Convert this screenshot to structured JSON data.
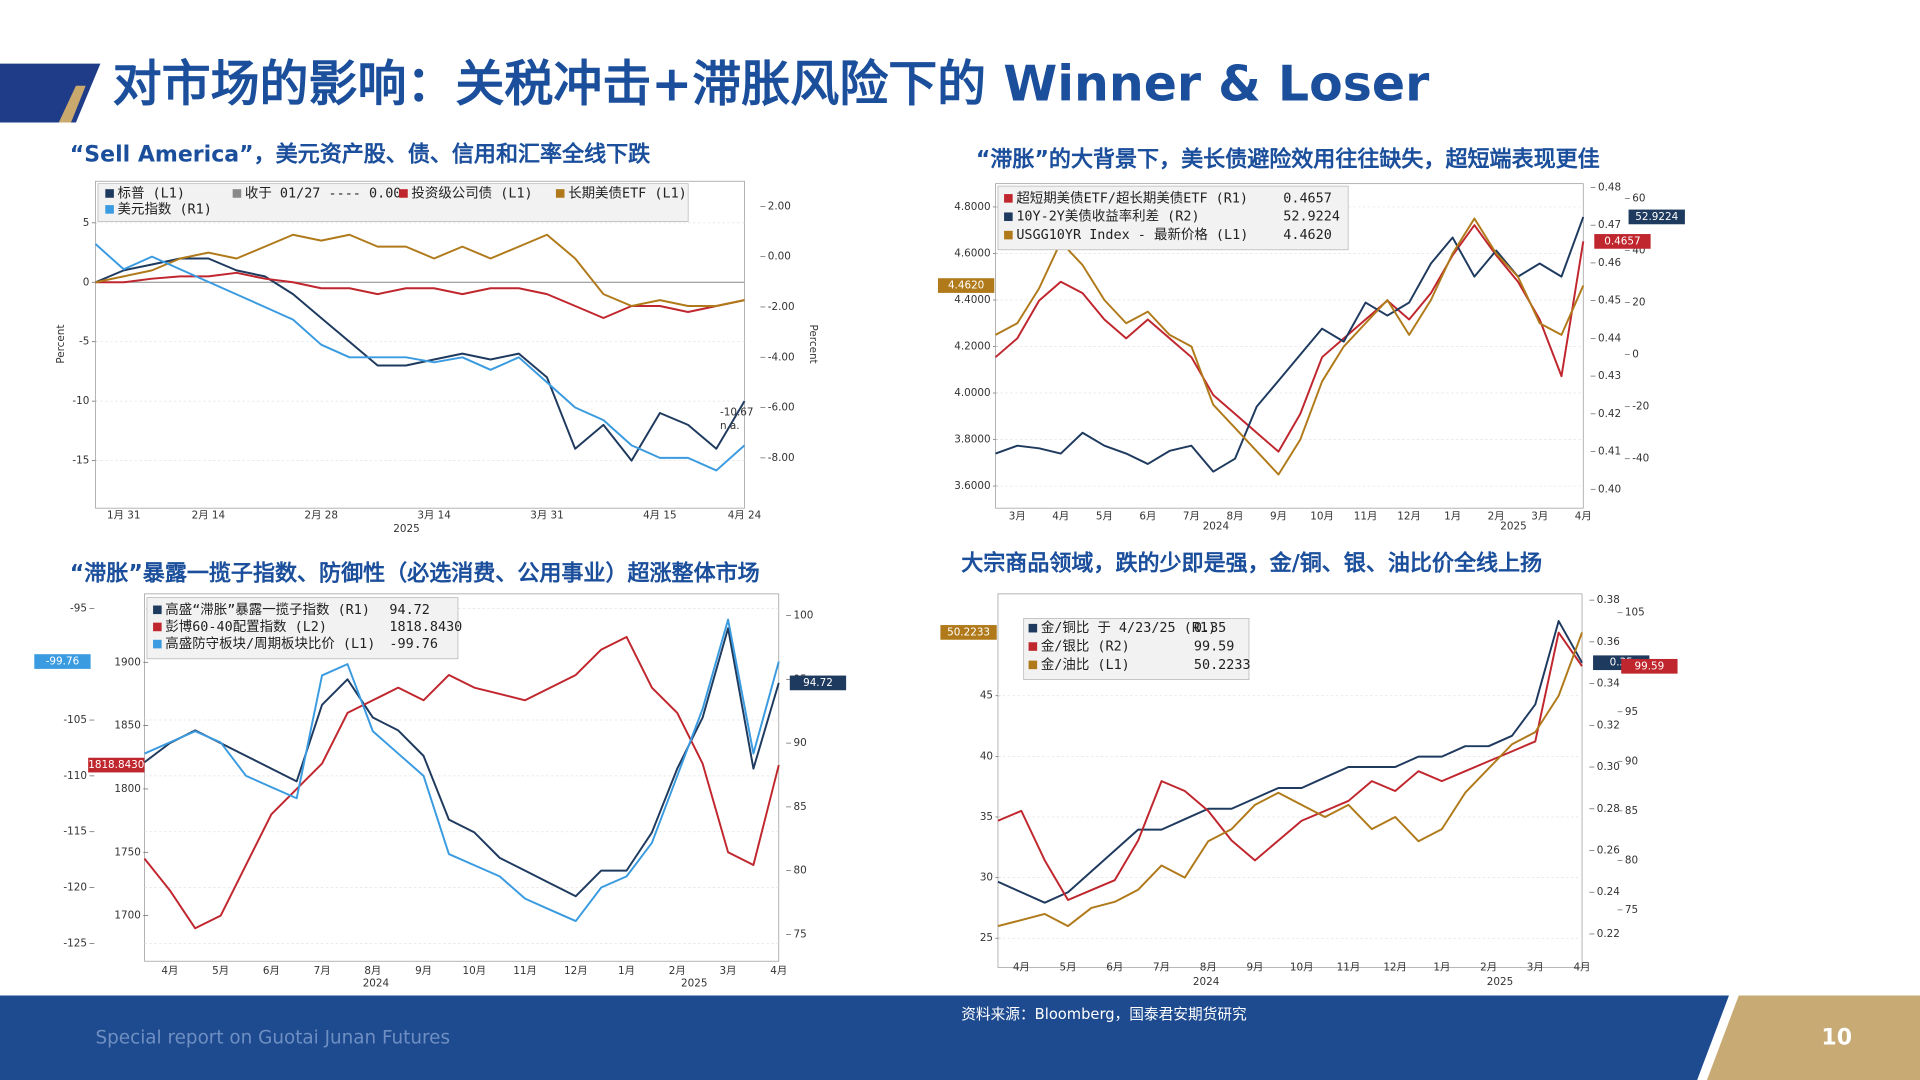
{
  "header": {
    "title": "对市场的影响：关税冲击+滞胀风险下的 Winner & Loser",
    "footer": "Special report on Guotai Junan Futures",
    "page_number": "10",
    "source": "资料来源：Bloomberg，国泰君安期货研究"
  },
  "chart_data": [
    {
      "type": "line",
      "title": "“Sell America”，美元资产股、债、信用和汇率全线下跌",
      "categories": [
        null,
        "1月 31",
        null,
        null,
        "2月 14",
        null,
        null,
        null,
        "2月 28",
        null,
        null,
        null,
        "3月 14",
        null,
        null,
        null,
        "3月 31",
        null,
        null,
        null,
        "4月 15",
        null,
        null,
        "4月 24"
      ],
      "year_labels": [
        "2025"
      ],
      "ylabel": "Percent",
      "y2label": "Percent",
      "ylim": [
        -19,
        8.5
      ],
      "yticks": [
        5,
        0,
        -5,
        -10,
        -15
      ],
      "y2lim": [
        -10,
        3
      ],
      "y2ticks": [
        {
          "value": 2,
          "label": "2.00"
        },
        {
          "value": 0,
          "label": "0.00"
        },
        {
          "value": -2,
          "label": "-2.00"
        },
        {
          "value": -4,
          "label": "-4.00"
        },
        {
          "value": -6,
          "label": "-6.00"
        },
        {
          "value": -8,
          "label": "-8.00"
        }
      ],
      "grid": true,
      "reference_line": {
        "label": "收于 01/27 ---- 0.00",
        "value": 0,
        "color": "#8a8a8a"
      },
      "series": [
        {
          "name": "标普 (L1)",
          "color": "#1f3a5f",
          "axis": "y",
          "values": [
            0,
            1,
            1.5,
            2,
            2,
            1,
            0.5,
            -1,
            -3,
            -5,
            -7,
            -7,
            -6.5,
            -6,
            -6.5,
            -6,
            -8,
            -14,
            -12,
            -15,
            -11,
            -12,
            -14,
            -10
          ]
        },
        {
          "name": "投资级公司债 (L1)",
          "color": "#c0262d",
          "axis": "y",
          "values": [
            0,
            0,
            0.3,
            0.5,
            0.5,
            0.8,
            0.3,
            0,
            -0.5,
            -0.5,
            -1,
            -0.5,
            -0.5,
            -1,
            -0.5,
            -0.5,
            -1,
            -2,
            -3,
            -2,
            -2,
            -2.5,
            -2,
            -1.5
          ]
        },
        {
          "name": "长期美债ETF (L1)",
          "color": "#b07a1a",
          "axis": "y",
          "values": [
            0,
            0.5,
            1,
            2,
            2.5,
            2,
            3,
            4,
            3.5,
            4,
            3,
            3,
            2,
            3,
            2,
            3,
            4,
            2,
            -1,
            -2,
            -1.5,
            -2,
            -2,
            -1.5
          ]
        },
        {
          "name": "美元指数 (R1)",
          "color": "#3a9be0",
          "axis": "y2",
          "values": [
            0.5,
            -0.5,
            0,
            -0.5,
            -1,
            -1.5,
            -2,
            -2.5,
            -3.5,
            -4,
            -4,
            -4,
            -4.2,
            -4,
            -4.5,
            -4,
            -5,
            -6,
            -6.5,
            -7.5,
            -8,
            -8,
            -8.5,
            -7.5
          ]
        }
      ],
      "annotations": [
        "-10.67",
        "n.a."
      ]
    },
    {
      "type": "line",
      "title": "“滞胀”的大背景下，美长债避险效用往往缺失，超短端表现更佳",
      "categories": [
        null,
        "3月",
        null,
        "4月",
        null,
        "5月",
        null,
        "6月",
        null,
        "7月",
        null,
        "8月",
        null,
        "9月",
        null,
        "10月",
        null,
        "11月",
        null,
        "12月",
        null,
        "1月",
        null,
        "2月",
        null,
        "3月",
        null,
        "4月"
      ],
      "year_labels": [
        "2024",
        "2025"
      ],
      "ylim": [
        3.505,
        4.9
      ],
      "yticks": [
        {
          "value": 4.8,
          "label": "4.8000"
        },
        {
          "value": 4.6,
          "label": "4.6000"
        },
        {
          "value": 4.4,
          "label": "4.4000"
        },
        {
          "value": 4.2,
          "label": "4.2000"
        },
        {
          "value": 4,
          "label": "4.0000"
        },
        {
          "value": 3.8,
          "label": "3.8000"
        },
        {
          "value": 3.6,
          "label": "3.6000"
        }
      ],
      "y2lim": [
        0.395,
        0.481
      ],
      "y2ticks": [
        0.48,
        0.47,
        0.46,
        0.45,
        0.44,
        0.43,
        0.42,
        0.41,
        {
          "value": 0.4,
          "label": "0.40"
        }
      ],
      "y3lim": [
        -59,
        65.7
      ],
      "y3ticks": [
        60,
        40,
        20,
        0,
        -20,
        -40
      ],
      "grid": true,
      "series": [
        {
          "name": "超短期美债ETF/超长期美债ETF (R1)",
          "last_label": "0.4657",
          "color": "#c0262d",
          "axis": "y2",
          "values": [
            0.435,
            0.44,
            0.45,
            0.455,
            0.452,
            0.445,
            0.44,
            0.445,
            0.44,
            0.435,
            0.425,
            0.42,
            0.415,
            0.41,
            0.42,
            0.435,
            0.44,
            0.445,
            0.45,
            0.445,
            0.452,
            0.462,
            0.47,
            0.462,
            0.455,
            0.445,
            0.43,
            0.4657
          ]
        },
        {
          "name": "10Y-2Y美债收益率利差 (R2)",
          "last_label": "52.9224",
          "color": "#1f3a5f",
          "axis": "y3",
          "values": [
            -38,
            -35,
            -36,
            -38,
            -30,
            -35,
            -38,
            -42,
            -37,
            -35,
            -45,
            -40,
            -20,
            -10,
            0,
            10,
            5,
            20,
            15,
            20,
            35,
            45,
            30,
            40,
            30,
            35,
            30,
            52.9224
          ]
        },
        {
          "name": "USGG10YR Index - 最新价格 (L1)",
          "last_label": "4.4620",
          "color": "#b07a1a",
          "axis": "y",
          "values": [
            4.25,
            4.3,
            4.45,
            4.65,
            4.55,
            4.4,
            4.3,
            4.35,
            4.25,
            4.2,
            3.95,
            3.85,
            3.75,
            3.65,
            3.8,
            4.05,
            4.2,
            4.3,
            4.4,
            4.25,
            4.4,
            4.6,
            4.75,
            4.6,
            4.5,
            4.3,
            4.25,
            4.462
          ]
        }
      ]
    },
    {
      "type": "line",
      "title": "“滞胀”暴露一揽子指数、防御性（必选消费、公用事业）超涨整体市场",
      "categories": [
        null,
        "4月",
        null,
        "5月",
        null,
        "6月",
        null,
        "7月",
        null,
        "8月",
        null,
        "9月",
        null,
        "10月",
        null,
        "11月",
        null,
        "12月",
        null,
        "1月",
        null,
        "2月",
        null,
        "3月",
        null,
        "4月"
      ],
      "year_labels": [
        "2024",
        "2025"
      ],
      "ylim": [
        -126.6,
        -93.7
      ],
      "yticks": [
        -95,
        -105,
        -110,
        -115,
        -120,
        -125
      ],
      "y2lim": [
        72.9,
        101.7
      ],
      "y2ticks": [
        100,
        95,
        90,
        85,
        80,
        75
      ],
      "y3lim": [
        1664,
        1954
      ],
      "y3ticks": [
        1900,
        1850,
        1800,
        1750,
        1700
      ],
      "grid": true,
      "series": [
        {
          "name": "高盛“滞胀”暴露一揽子指数 (R1)",
          "last_label": "94.72",
          "color": "#1f3a5f",
          "axis": "y2",
          "values": [
            88.5,
            90,
            91,
            90,
            89,
            88,
            87,
            93,
            95,
            92,
            91,
            89,
            84,
            83,
            81,
            80,
            79,
            78,
            80,
            80,
            83,
            88,
            92,
            99,
            88,
            94.72
          ]
        },
        {
          "name": "彭博60-40配置指数 (L2)",
          "last_label": "1818.8430",
          "color": "#c0262d",
          "axis": "y3",
          "values": [
            1745,
            1720,
            1690,
            1700,
            1740,
            1780,
            1800,
            1820,
            1860,
            1870,
            1880,
            1870,
            1890,
            1880,
            1875,
            1870,
            1880,
            1890,
            1910,
            1920,
            1880,
            1860,
            1820,
            1750,
            1740,
            1818.843
          ]
        },
        {
          "name": "高盛防守板块/周期板块比价 (L1)",
          "last_label": "-99.76",
          "color": "#3a9be0",
          "axis": "y",
          "values": [
            -108,
            -107,
            -106,
            -107,
            -110,
            -111,
            -112,
            -101,
            -100,
            -106,
            -108,
            -110,
            -117,
            -118,
            -119,
            -121,
            -122,
            -123,
            -120,
            -119,
            -116,
            -110,
            -104,
            -96,
            -108,
            -99.76
          ]
        }
      ]
    },
    {
      "type": "line",
      "title": "大宗商品领域，跌的少即是强，金/铜、银、油比价全线上扬",
      "categories": [
        null,
        "4月",
        null,
        "5月",
        null,
        "6月",
        null,
        "7月",
        null,
        "8月",
        null,
        "9月",
        null,
        "10月",
        null,
        "11月",
        null,
        "12月",
        null,
        "1月",
        null,
        "2月",
        null,
        "3月",
        null,
        "4月"
      ],
      "year_labels": [
        "2024",
        "2025"
      ],
      "ylim": [
        22.6,
        53.4
      ],
      "yticks": [
        45,
        40,
        35,
        30,
        25
      ],
      "y2lim": [
        0.204,
        0.383
      ],
      "y2ticks": [
        0.38,
        0.36,
        0.34,
        0.32,
        {
          "value": 0.3,
          "label": "0.30"
        },
        0.28,
        0.26,
        0.24,
        0.22
      ],
      "y3lim": [
        69.2,
        106.9
      ],
      "y3ticks": [
        105,
        95,
        90,
        85,
        80,
        75
      ],
      "grid": true,
      "series": [
        {
          "name": "金/铜比 于 4/23/25 (R1)",
          "last_label": "0.35",
          "color": "#1f3a5f",
          "axis": "y2",
          "values": [
            0.245,
            0.24,
            0.235,
            0.24,
            0.25,
            0.26,
            0.27,
            0.27,
            0.275,
            0.28,
            0.28,
            0.285,
            0.29,
            0.29,
            0.295,
            0.3,
            0.3,
            0.3,
            0.305,
            0.305,
            0.31,
            0.31,
            0.315,
            0.33,
            0.37,
            0.35
          ]
        },
        {
          "name": "金/银比 (R2)",
          "last_label": "99.59",
          "color": "#c0262d",
          "axis": "y3",
          "values": [
            84,
            85,
            80,
            76,
            77,
            78,
            82,
            88,
            87,
            85,
            82,
            80,
            82,
            84,
            85,
            86,
            88,
            87,
            89,
            88,
            89,
            90,
            91,
            92,
            103,
            99.59
          ]
        },
        {
          "name": "金/油比 (L1)",
          "last_label": "50.2233",
          "color": "#b07a1a",
          "axis": "y",
          "values": [
            26,
            26.5,
            27,
            26,
            27.5,
            28,
            29,
            31,
            30,
            33,
            34,
            36,
            37,
            36,
            35,
            36,
            34,
            35,
            33,
            34,
            37,
            39,
            41,
            42,
            45,
            50.2233
          ]
        }
      ]
    }
  ]
}
